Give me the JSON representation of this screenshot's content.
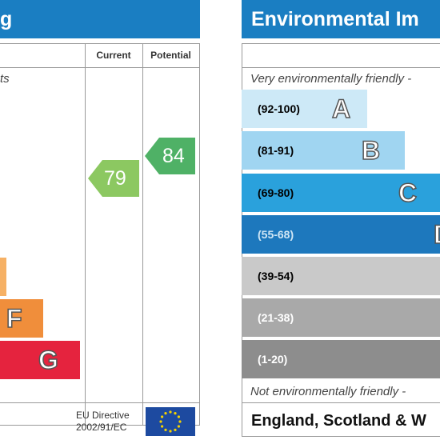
{
  "left_panel": {
    "title": "g",
    "columns": {
      "current": "Current",
      "potential": "Potential"
    },
    "top_note": "ts",
    "bands": [
      {
        "letter": "",
        "color": "#f6b165"
      },
      {
        "letter": "F",
        "color": "#f08e3b"
      },
      {
        "letter": "G",
        "color": "#e5233e"
      }
    ],
    "current_rating": "79",
    "potential_rating": "84",
    "current_color": "#8cc861",
    "potential_color": "#4fb166",
    "footer": {
      "directive_line1": "EU Directive",
      "directive_line2": "2002/91/EC"
    }
  },
  "right_panel": {
    "title": "Environmental Im",
    "top_note": "Very environmentally friendly -",
    "bottom_note": "Not environmentally friendly -",
    "country": "England, Scotland & W",
    "bands": [
      {
        "range": "(92-100)",
        "letter": "A",
        "color": "#cde9f7"
      },
      {
        "range": "(81-91)",
        "letter": "B",
        "color": "#a0d5f1"
      },
      {
        "range": "(69-80)",
        "letter": "C",
        "color": "#2aa1dc"
      },
      {
        "range": "(55-68)",
        "letter": "D",
        "color": "#1d78bd"
      },
      {
        "range": "(39-54)",
        "letter": "",
        "color": "#c9c9c9"
      },
      {
        "range": "(21-38)",
        "letter": "",
        "color": "#a9a9a9"
      },
      {
        "range": "(1-20)",
        "letter": "",
        "color": "#8d8d8d"
      }
    ]
  }
}
